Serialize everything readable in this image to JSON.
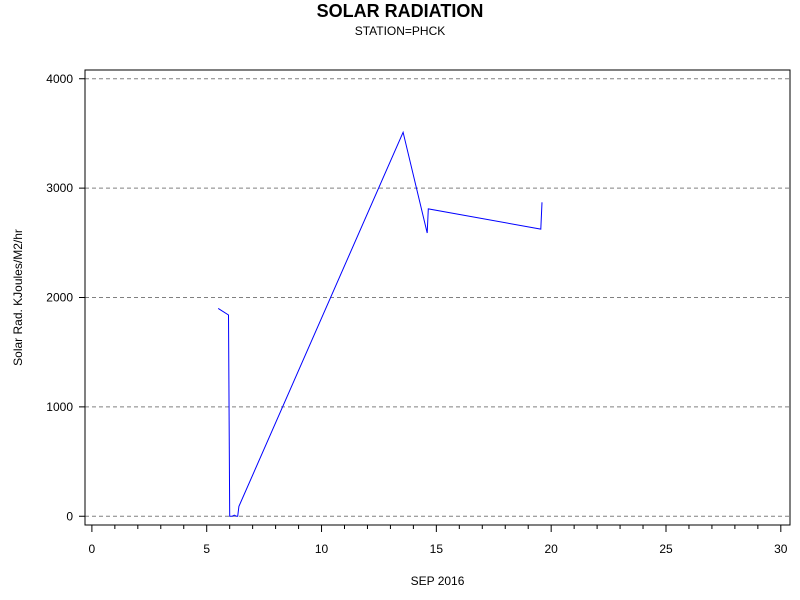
{
  "chart_data": {
    "type": "line",
    "title": "SOLAR RADIATION",
    "subtitle": "STATION=PHCK",
    "xlabel": "SEP 2016",
    "ylabel": "Solar Rad. KJoules/M2/hr",
    "xlim": [
      -0.3,
      30.4
    ],
    "ylim": [
      -80,
      4080
    ],
    "x_ticks": [
      0,
      5,
      10,
      15,
      20,
      25,
      30
    ],
    "y_ticks": [
      0,
      1000,
      2000,
      3000,
      4000
    ],
    "grid": "horizontal-dashed",
    "colors": {
      "line": "#0000ff",
      "grid": "#808080",
      "axis": "#000000"
    },
    "series": [
      {
        "x": [
          5.5,
          5.95,
          6.0,
          6.1,
          6.2,
          6.3,
          6.35,
          6.4,
          13.55,
          14.6,
          14.65,
          19.55,
          19.6
        ],
        "y": [
          1900,
          1840,
          0,
          0,
          10,
          0,
          0,
          90,
          3510,
          2590,
          2810,
          2625,
          2870
        ]
      }
    ]
  }
}
